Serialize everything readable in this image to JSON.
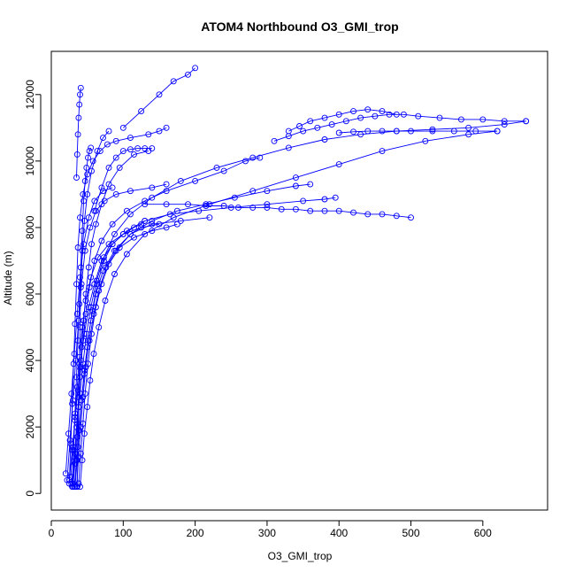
{
  "chart_data": {
    "type": "scatter",
    "title": "ATOM4 Northbound O3_GMI_trop",
    "xlabel": "O3_GMI_trop",
    "ylabel": "Altitude (m)",
    "xlim": [
      0,
      690
    ],
    "ylim": [
      -500,
      13300
    ],
    "xticks": [
      0,
      100,
      200,
      300,
      400,
      500,
      600
    ],
    "yticks": [
      0,
      2000,
      4000,
      6000,
      8000,
      10000,
      12000
    ],
    "grid": false,
    "legend": "none",
    "series_color": "#0000ff",
    "marker": "open-circle",
    "series": [
      {
        "x": [
          30,
          33,
          36,
          38,
          40,
          42,
          45,
          48,
          52,
          56,
          62,
          70,
          80,
          95,
          115,
          135
        ],
        "y": [
          200,
          900,
          1700,
          2600,
          3500,
          4400,
          5200,
          6000,
          6800,
          7500,
          8100,
          8700,
          9300,
          9800,
          10200,
          10300
        ]
      },
      {
        "x": [
          28,
          32,
          35,
          38,
          41,
          44,
          48,
          53,
          60,
          70,
          85,
          105,
          130,
          160,
          200,
          240,
          270,
          290
        ],
        "y": [
          300,
          1100,
          2000,
          2900,
          3800,
          4600,
          5400,
          6200,
          7000,
          7600,
          8100,
          8500,
          8800,
          9100,
          9400,
          9700,
          10000,
          10100
        ]
      },
      {
        "x": [
          32,
          35,
          38,
          42,
          46,
          50,
          55,
          62,
          72,
          88,
          110,
          140,
          175,
          215,
          255,
          300,
          340,
          360
        ],
        "y": [
          200,
          1000,
          1900,
          2800,
          3600,
          4400,
          5200,
          6000,
          6700,
          7300,
          7800,
          8200,
          8500,
          8700,
          8900,
          9100,
          9250,
          9300
        ]
      },
      {
        "x": [
          25,
          29,
          33,
          37,
          41,
          46,
          52,
          60,
          70,
          85,
          105,
          130,
          165,
          205,
          250,
          300,
          350,
          380,
          395
        ],
        "y": [
          400,
          1300,
          2200,
          3100,
          4000,
          4800,
          5600,
          6300,
          7000,
          7500,
          7900,
          8200,
          8400,
          8500,
          8600,
          8700,
          8800,
          8850,
          8900
        ]
      },
      {
        "x": [
          35,
          38,
          41,
          44,
          48,
          53,
          59,
          66,
          76,
          90,
          110,
          140,
          180,
          220
        ],
        "y": [
          200,
          1100,
          2000,
          2900,
          3800,
          4600,
          5400,
          6100,
          6800,
          7300,
          7800,
          8100,
          8200,
          8300
        ]
      },
      {
        "x": [
          30,
          33,
          36,
          40,
          44,
          49,
          55,
          63,
          73,
          88,
          110,
          140,
          180,
          230,
          280,
          330,
          380,
          430,
          480,
          530,
          580,
          630,
          660
        ],
        "y": [
          300,
          1200,
          2100,
          3000,
          3900,
          4800,
          5600,
          6400,
          7100,
          7800,
          8400,
          8900,
          9400,
          9800,
          10100,
          10400,
          10650,
          10800,
          10900,
          10950,
          11000,
          11100,
          11200
        ]
      },
      {
        "x": [
          40,
          43,
          46,
          50,
          54,
          59,
          66,
          75,
          88,
          105,
          130,
          170,
          220,
          280,
          340,
          400,
          460,
          520,
          580,
          620
        ],
        "y": [
          200,
          1000,
          1800,
          2600,
          3400,
          4200,
          5000,
          5800,
          6600,
          7200,
          7800,
          8300,
          8700,
          9100,
          9500,
          9900,
          10300,
          10600,
          10800,
          10900
        ]
      },
      {
        "x": [
          27,
          30,
          33,
          36,
          39,
          43,
          48,
          55,
          65,
          80,
          100,
          125,
          150
        ],
        "y": [
          500,
          1400,
          2300,
          3200,
          4100,
          5000,
          5800,
          6500,
          7100,
          7500,
          7800,
          8000,
          8100
        ]
      },
      {
        "x": [
          33,
          36,
          39,
          42,
          46,
          51,
          57,
          64,
          73,
          85,
          100,
          115,
          125,
          130
        ],
        "y": [
          200,
          1000,
          1900,
          2800,
          3700,
          4600,
          5500,
          6300,
          7000,
          7500,
          7800,
          8000,
          8100,
          8200
        ]
      },
      {
        "x": [
          38,
          41,
          44,
          47,
          51,
          56,
          62,
          70,
          80,
          95,
          115,
          140,
          160,
          175
        ],
        "y": [
          300,
          1200,
          2100,
          3000,
          3900,
          4800,
          5600,
          6300,
          6900,
          7400,
          7700,
          7900,
          8000,
          8100
        ]
      },
      {
        "x": [
          29,
          31,
          33,
          35,
          37,
          39,
          41,
          43,
          45,
          47,
          49,
          51,
          53,
          55
        ],
        "y": [
          200,
          1300,
          2400,
          3500,
          4600,
          5700,
          6800,
          7900,
          8800,
          9400,
          9800,
          10100,
          10300,
          10400
        ]
      },
      {
        "x": [
          36,
          37,
          38,
          39,
          40,
          41,
          43,
          46,
          50,
          56,
          64,
          72,
          80
        ],
        "y": [
          200,
          1400,
          2600,
          3800,
          5000,
          6200,
          7300,
          8200,
          9000,
          9700,
          10300,
          10700,
          10900
        ]
      },
      {
        "x": [
          25,
          27,
          29,
          31,
          33,
          35,
          37,
          40,
          44,
          50,
          58,
          68,
          78,
          90,
          110,
          135,
          150,
          160
        ],
        "y": [
          300,
          1500,
          2700,
          3900,
          5100,
          6300,
          7400,
          8300,
          9000,
          9600,
          10000,
          10300,
          10500,
          10600,
          10700,
          10800,
          10900,
          11000
        ]
      },
      {
        "x": [
          35,
          36,
          37,
          38,
          39,
          40,
          41
        ],
        "y": [
          9500,
          10200,
          10800,
          11300,
          11700,
          12000,
          12200
        ]
      },
      {
        "x": [
          100,
          125,
          150,
          170,
          190,
          200
        ],
        "y": [
          11000,
          11500,
          12000,
          12400,
          12600,
          12800
        ]
      },
      {
        "x": [
          60,
          70,
          80,
          90,
          100,
          110,
          120,
          130,
          140
        ],
        "y": [
          8500,
          9200,
          9800,
          10100,
          10300,
          10350,
          10380,
          10380,
          10380
        ]
      },
      {
        "x": [
          130,
          160,
          190,
          215,
          240,
          260,
          280,
          300,
          320,
          340,
          360,
          380,
          400,
          420,
          440,
          460,
          480,
          500
        ],
        "y": [
          8700,
          8700,
          8700,
          8650,
          8650,
          8600,
          8600,
          8600,
          8550,
          8550,
          8500,
          8500,
          8500,
          8450,
          8400,
          8400,
          8350,
          8300
        ]
      },
      {
        "x": [
          310,
          330,
          350,
          370,
          390,
          410,
          430,
          450,
          470,
          490,
          510,
          540,
          570,
          600,
          630,
          660
        ],
        "y": [
          10600,
          10750,
          10900,
          11000,
          11100,
          11200,
          11300,
          11350,
          11400,
          11400,
          11350,
          11300,
          11250,
          11250,
          11200,
          11200
        ]
      },
      {
        "x": [
          330,
          345,
          360,
          380,
          400,
          420,
          440,
          460,
          480
        ],
        "y": [
          10900,
          11050,
          11200,
          11300,
          11400,
          11500,
          11550,
          11500,
          11400
        ]
      },
      {
        "x": [
          400,
          420,
          440,
          460,
          480,
          500,
          530,
          560,
          590,
          620
        ],
        "y": [
          10850,
          10880,
          10900,
          10900,
          10900,
          10900,
          10900,
          10900,
          10900,
          10900
        ]
      },
      {
        "x": [
          20,
          24,
          28,
          32,
          36,
          40,
          45,
          52,
          60,
          72,
          85
        ],
        "y": [
          600,
          1800,
          3000,
          4200,
          5400,
          6500,
          7500,
          8300,
          8800,
          9100,
          9200
        ]
      },
      {
        "x": [
          22,
          26,
          30,
          34,
          38,
          42,
          47,
          54,
          62,
          74,
          90,
          110,
          140,
          160
        ],
        "y": [
          400,
          1600,
          2800,
          4000,
          5200,
          6300,
          7300,
          8000,
          8500,
          8800,
          9000,
          9100,
          9200,
          9300
        ]
      }
    ]
  }
}
